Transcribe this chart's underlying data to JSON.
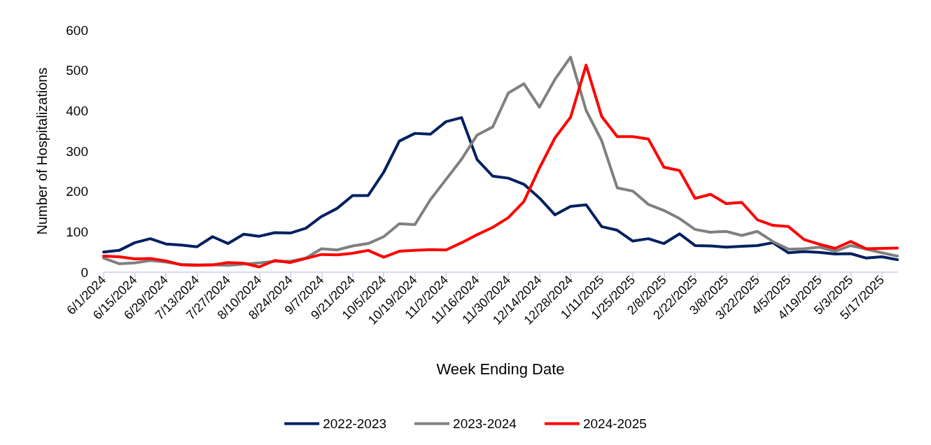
{
  "chart_data": {
    "type": "line",
    "xlabel": "Week Ending Date",
    "ylabel": "Number of Hospitalizations",
    "categories": [
      "6/1/2024",
      null,
      "6/15/2024",
      null,
      "6/29/2024",
      null,
      "7/13/2024",
      null,
      "7/27/2024",
      null,
      "8/10/2024",
      null,
      "8/24/2024",
      null,
      "9/7/2024",
      null,
      "9/21/2024",
      null,
      "10/5/2024",
      null,
      "10/19/2024",
      null,
      "11/2/2024",
      null,
      "11/16/2024",
      null,
      "11/30/2024",
      null,
      "12/14/2024",
      null,
      "12/28/2024",
      null,
      "1/11/2025",
      null,
      "1/25/2025",
      null,
      "2/8/2025",
      null,
      "2/22/2025",
      null,
      "3/8/2025",
      null,
      "3/22/2025",
      null,
      "4/5/2025",
      null,
      "4/19/2025",
      null,
      "5/3/2025",
      null,
      "5/17/2025",
      null
    ],
    "series": [
      {
        "name": "2022-2023",
        "color": "#002060",
        "values": [
          50,
          54,
          73,
          83,
          70,
          67,
          63,
          88,
          71,
          94,
          89,
          98,
          97,
          109,
          138,
          158,
          190,
          190,
          248,
          325,
          344,
          342,
          373,
          383,
          279,
          238,
          233,
          218,
          184,
          142,
          163,
          167,
          113,
          104,
          77,
          83,
          71,
          95,
          66,
          65,
          62,
          64,
          66,
          73,
          48,
          51,
          49,
          45,
          46,
          35,
          38,
          31
        ]
      },
      {
        "name": "2023-2024",
        "color": "#808080",
        "values": [
          35,
          21,
          23,
          29,
          25,
          19,
          18,
          18,
          17,
          20,
          23,
          27,
          27,
          35,
          58,
          55,
          65,
          71,
          88,
          120,
          118,
          180,
          230,
          280,
          340,
          360,
          444,
          467,
          409,
          478,
          533,
          401,
          326,
          209,
          201,
          168,
          153,
          133,
          106,
          99,
          101,
          91,
          101,
          76,
          57,
          58,
          62,
          52,
          66,
          57,
          48,
          40
        ]
      },
      {
        "name": "2024-2025",
        "color": "#ff0000",
        "values": [
          40,
          38,
          33,
          34,
          28,
          18,
          17,
          18,
          24,
          22,
          13,
          29,
          24,
          34,
          44,
          43,
          47,
          54,
          37,
          52,
          54,
          56,
          55,
          73,
          93,
          111,
          135,
          175,
          258,
          333,
          384,
          513,
          386,
          336,
          336,
          330,
          260,
          252,
          183,
          193,
          170,
          173,
          130,
          116,
          113,
          81,
          69,
          59,
          76,
          58,
          59,
          60
        ]
      }
    ],
    "ylim": [
      0,
      600
    ],
    "yticks": [
      0,
      100,
      200,
      300,
      400,
      500,
      600
    ],
    "grid": false,
    "legend": "bottom",
    "marker": "none",
    "line_style": "solid"
  }
}
